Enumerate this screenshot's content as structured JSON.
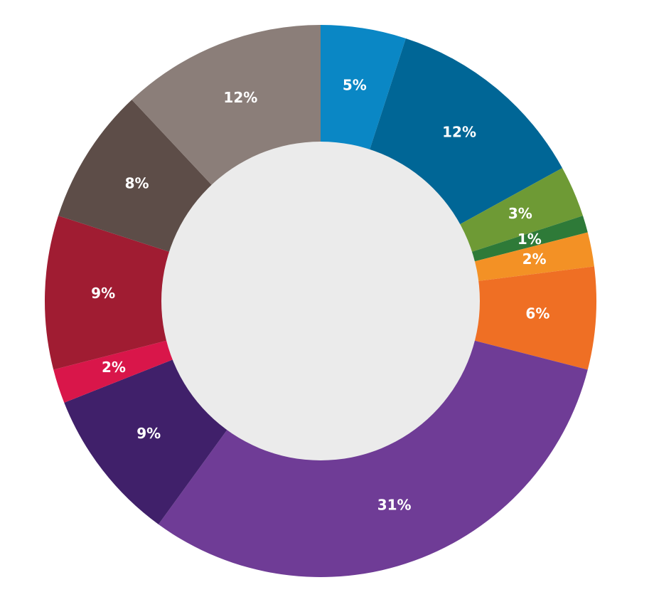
{
  "chart_data": {
    "type": "donut",
    "values": [
      5,
      12,
      3,
      1,
      2,
      6,
      31,
      9,
      2,
      9,
      8,
      12
    ],
    "value_labels": [
      "5%",
      "12%",
      "3%",
      "1%",
      "2%",
      "6%",
      "31%",
      "9%",
      "2%",
      "9%",
      "8%",
      "12%"
    ],
    "colors": [
      "#0a87c5",
      "#006696",
      "#6e9a35",
      "#2e7a38",
      "#f39125",
      "#ef6f24",
      "#6f3c96",
      "#40206a",
      "#d9164a",
      "#a01c32",
      "#5d4d48",
      "#8b7e79"
    ]
  }
}
